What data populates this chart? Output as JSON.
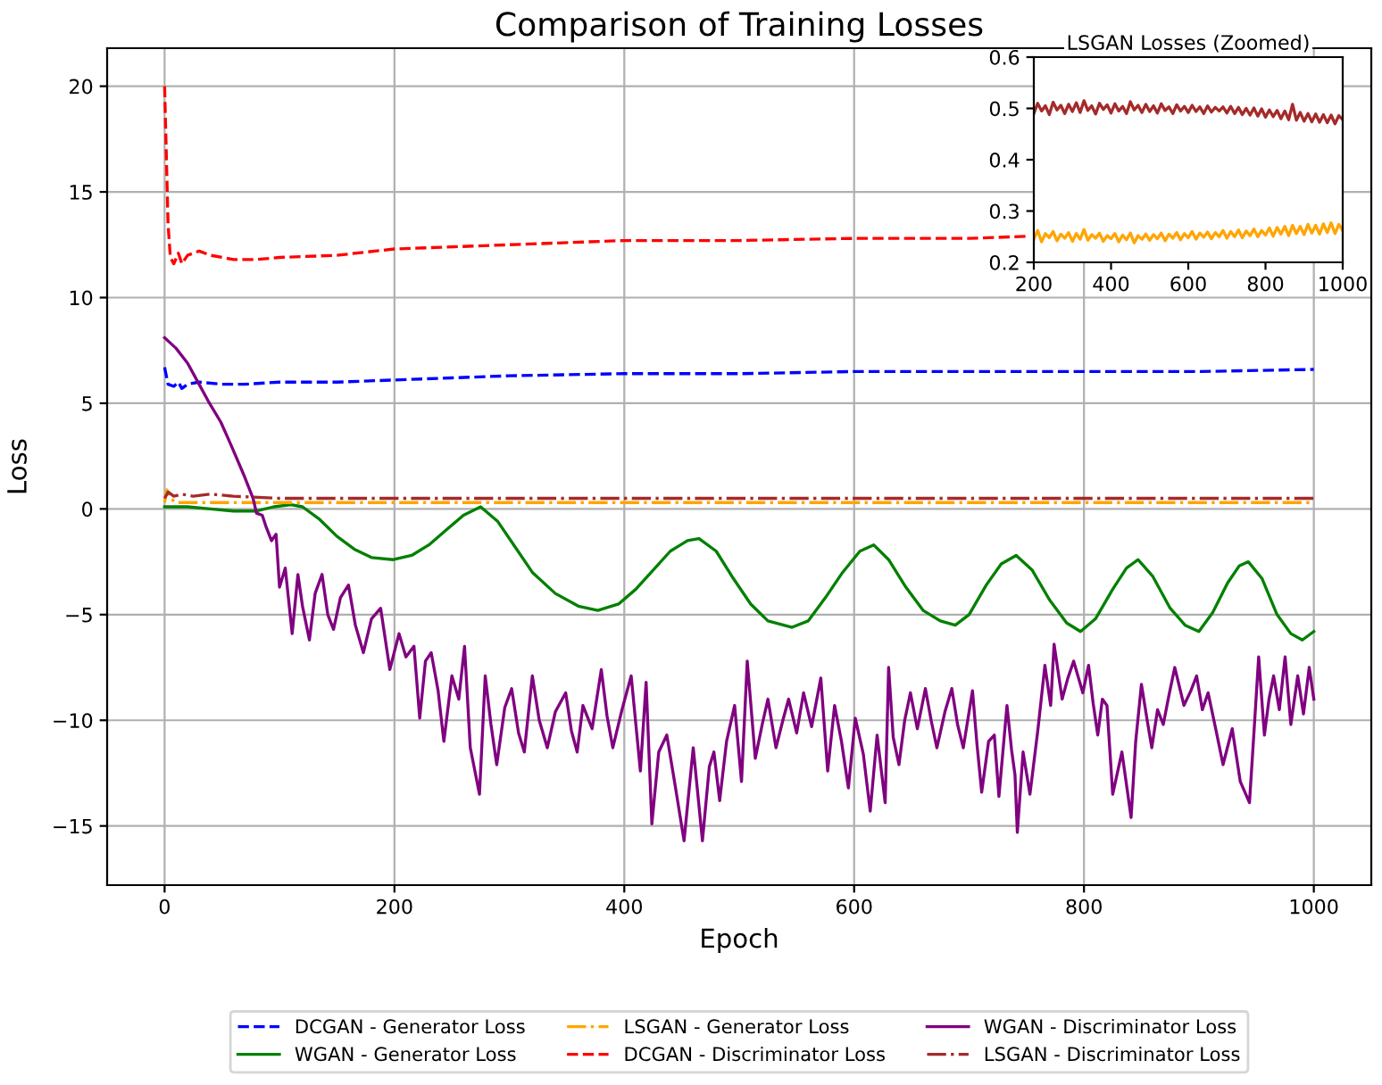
{
  "chart_data": [
    {
      "type": "line",
      "title": "Comparison of Training Losses",
      "xlabel": "Epoch",
      "ylabel": "Loss",
      "xlim": [
        -50,
        1050
      ],
      "ylim": [
        -17.8,
        21.8
      ],
      "xticks": [
        0,
        200,
        400,
        600,
        800,
        1000
      ],
      "yticks": [
        -15,
        -10,
        -5,
        0,
        5,
        10,
        15,
        20
      ],
      "grid": true,
      "legend": "bottom",
      "series": [
        {
          "name": "DCGAN - Generator Loss",
          "color": "#0000ff",
          "line_style": "dashed",
          "x": [
            0,
            3,
            8,
            12,
            15,
            20,
            30,
            50,
            70,
            100,
            150,
            200,
            250,
            300,
            400,
            500,
            600,
            700,
            800,
            900,
            1000
          ],
          "values": [
            6.7,
            5.9,
            5.8,
            6.0,
            5.7,
            5.9,
            6.0,
            5.9,
            5.9,
            6.0,
            6.0,
            6.1,
            6.2,
            6.3,
            6.4,
            6.4,
            6.5,
            6.5,
            6.5,
            6.5,
            6.6
          ]
        },
        {
          "name": "WGAN - Generator Loss",
          "color": "#008000",
          "line_style": "solid",
          "x": [
            0,
            20,
            40,
            60,
            80,
            95,
            110,
            120,
            135,
            150,
            165,
            180,
            199,
            215,
            230,
            245,
            260,
            275,
            290,
            305,
            320,
            340,
            360,
            377,
            395,
            410,
            425,
            440,
            455,
            465,
            480,
            495,
            510,
            525,
            546,
            560,
            575,
            590,
            605,
            617,
            630,
            645,
            660,
            675,
            688,
            700,
            715,
            728,
            741,
            755,
            770,
            785,
            797,
            810,
            825,
            837,
            847,
            860,
            875,
            888,
            900,
            912,
            925,
            935,
            943,
            955,
            968,
            980,
            990,
            1000
          ],
          "values": [
            0.1,
            0.1,
            0.0,
            -0.1,
            -0.1,
            0.1,
            0.2,
            0.1,
            -0.5,
            -1.3,
            -1.9,
            -2.3,
            -2.4,
            -2.2,
            -1.7,
            -1.0,
            -0.3,
            0.1,
            -0.6,
            -1.8,
            -3.0,
            -4.0,
            -4.6,
            -4.8,
            -4.5,
            -3.8,
            -2.9,
            -2.0,
            -1.5,
            -1.4,
            -2.0,
            -3.3,
            -4.5,
            -5.3,
            -5.6,
            -5.3,
            -4.2,
            -3.0,
            -2.0,
            -1.7,
            -2.4,
            -3.7,
            -4.8,
            -5.3,
            -5.5,
            -5.0,
            -3.6,
            -2.6,
            -2.2,
            -2.9,
            -4.3,
            -5.4,
            -5.8,
            -5.2,
            -3.8,
            -2.8,
            -2.4,
            -3.2,
            -4.7,
            -5.5,
            -5.8,
            -4.9,
            -3.5,
            -2.7,
            -2.5,
            -3.3,
            -5.0,
            -5.9,
            -6.2,
            -5.8
          ]
        },
        {
          "name": "LSGAN - Generator Loss",
          "color": "#ffa500",
          "line_style": "dashdot",
          "x": [
            0,
            2,
            5,
            10,
            1000
          ],
          "values": [
            0.3,
            0.9,
            0.5,
            0.3,
            0.3
          ]
        },
        {
          "name": "DCGAN - Discriminator Loss",
          "color": "#ff0000",
          "line_style": "dashed",
          "x": [
            0,
            3,
            5,
            8,
            12,
            15,
            20,
            30,
            40,
            60,
            80,
            100,
            150,
            200,
            300,
            400,
            500,
            600,
            700,
            750
          ],
          "values": [
            20.0,
            13.5,
            11.9,
            11.6,
            12.1,
            11.6,
            12.0,
            12.2,
            12.0,
            11.8,
            11.8,
            11.9,
            12.0,
            12.3,
            12.5,
            12.7,
            12.7,
            12.8,
            12.8,
            12.9
          ]
        },
        {
          "name": "WGAN - Discriminator Loss",
          "color": "#800080",
          "line_style": "solid",
          "x": [
            0,
            10,
            20,
            28,
            38,
            49,
            58,
            69,
            77,
            80,
            85,
            88,
            93,
            97,
            100,
            105,
            111,
            116,
            120,
            126,
            131,
            137,
            142,
            147,
            153,
            160,
            166,
            173,
            180,
            188,
            196,
            204,
            210,
            217,
            222,
            227,
            232,
            238,
            243,
            250,
            256,
            261,
            266,
            274,
            279,
            284,
            289,
            296,
            302,
            308,
            313,
            320,
            326,
            333,
            340,
            349,
            354,
            359,
            364,
            372,
            380,
            385,
            390,
            398,
            406,
            414,
            419,
            424,
            430,
            437,
            444,
            452,
            460,
            468,
            474,
            478,
            483,
            489,
            496,
            502,
            507,
            514,
            520,
            525,
            532,
            538,
            543,
            550,
            556,
            563,
            571,
            577,
            583,
            589,
            595,
            601,
            608,
            614,
            620,
            627,
            630,
            634,
            639,
            644,
            649,
            655,
            662,
            667,
            672,
            679,
            685,
            690,
            695,
            703,
            707,
            711,
            717,
            722,
            726,
            733,
            737,
            740,
            742,
            747,
            753,
            760,
            766,
            771,
            774,
            781,
            786,
            791,
            799,
            804,
            808,
            812,
            816,
            820,
            825,
            833,
            841,
            845,
            850,
            855,
            859,
            864,
            869,
            874,
            879,
            887,
            893,
            898,
            903,
            908,
            915,
            921,
            929,
            936,
            944,
            948,
            952,
            957,
            961,
            965,
            970,
            975,
            980,
            986,
            991,
            996,
            1000
          ],
          "values": [
            8.1,
            7.6,
            6.9,
            6.1,
            5.1,
            4.1,
            3.0,
            1.6,
            0.5,
            -0.2,
            -0.3,
            -0.8,
            -1.5,
            -1.2,
            -3.7,
            -2.8,
            -5.9,
            -3.1,
            -4.6,
            -6.2,
            -4.0,
            -3.1,
            -5.0,
            -5.7,
            -4.2,
            -3.6,
            -5.5,
            -6.8,
            -5.2,
            -4.7,
            -7.6,
            -5.9,
            -7.0,
            -6.5,
            -9.9,
            -7.2,
            -6.8,
            -8.6,
            -11.0,
            -7.9,
            -9.0,
            -6.5,
            -11.3,
            -13.5,
            -7.9,
            -10.2,
            -12.1,
            -9.4,
            -8.5,
            -10.6,
            -11.5,
            -7.9,
            -10.0,
            -11.3,
            -9.6,
            -8.7,
            -10.5,
            -11.5,
            -9.3,
            -10.4,
            -7.6,
            -9.8,
            -11.3,
            -9.5,
            -7.9,
            -12.4,
            -8.2,
            -14.9,
            -11.5,
            -10.7,
            -13.0,
            -15.7,
            -11.3,
            -15.7,
            -12.2,
            -11.5,
            -13.8,
            -11.0,
            -9.3,
            -12.9,
            -7.2,
            -11.8,
            -10.2,
            -9.0,
            -11.3,
            -10.0,
            -9.0,
            -10.6,
            -8.7,
            -10.3,
            -8.0,
            -12.4,
            -9.3,
            -11.0,
            -13.2,
            -9.9,
            -11.6,
            -14.3,
            -10.7,
            -13.9,
            -7.5,
            -10.8,
            -12.1,
            -10.0,
            -8.7,
            -10.4,
            -8.5,
            -10.0,
            -11.3,
            -9.6,
            -8.5,
            -10.2,
            -11.3,
            -8.6,
            -11.2,
            -13.4,
            -11.0,
            -10.7,
            -13.6,
            -9.3,
            -11.4,
            -12.6,
            -15.3,
            -11.5,
            -13.5,
            -10.4,
            -7.4,
            -9.3,
            -6.4,
            -9.0,
            -8.0,
            -7.2,
            -8.7,
            -7.4,
            -9.2,
            -10.7,
            -9.0,
            -9.3,
            -13.5,
            -11.5,
            -14.6,
            -11.0,
            -8.3,
            -10.0,
            -11.3,
            -9.5,
            -10.2,
            -8.8,
            -7.5,
            -9.3,
            -8.6,
            -7.9,
            -9.5,
            -8.7,
            -10.5,
            -12.1,
            -10.4,
            -12.9,
            -13.9,
            -10.5,
            -7.0,
            -10.7,
            -9.0,
            -7.9,
            -9.5,
            -7.0,
            -10.2,
            -7.9,
            -9.7,
            -7.5,
            -9.0
          ]
        },
        {
          "name": "LSGAN - Discriminator Loss",
          "color": "#a52a2a",
          "line_style": "dashdot",
          "x": [
            0,
            3,
            8,
            15,
            25,
            40,
            60,
            100,
            1000
          ],
          "values": [
            0.5,
            0.8,
            0.6,
            0.7,
            0.6,
            0.7,
            0.6,
            0.5,
            0.5
          ]
        }
      ]
    },
    {
      "type": "line",
      "title": "LSGAN Losses (Zoomed)",
      "xlim": [
        200,
        1000
      ],
      "ylim": [
        0.2,
        0.6
      ],
      "xticks": [
        200,
        400,
        600,
        800,
        1000
      ],
      "yticks": [
        0.2,
        0.3,
        0.4,
        0.5,
        0.6
      ],
      "x": [
        200,
        210,
        220,
        230,
        240,
        250,
        260,
        270,
        280,
        290,
        300,
        310,
        320,
        330,
        340,
        350,
        360,
        370,
        380,
        390,
        400,
        410,
        420,
        430,
        440,
        450,
        460,
        470,
        480,
        490,
        500,
        510,
        520,
        530,
        540,
        550,
        560,
        570,
        580,
        590,
        600,
        610,
        620,
        630,
        640,
        650,
        660,
        670,
        680,
        690,
        700,
        710,
        720,
        730,
        740,
        750,
        760,
        770,
        780,
        790,
        800,
        810,
        820,
        830,
        840,
        850,
        860,
        870,
        880,
        890,
        900,
        910,
        920,
        930,
        940,
        950,
        960,
        970,
        980,
        990,
        1000
      ],
      "series": [
        {
          "color": "#ffa500",
          "line_style": "solid",
          "values": [
            0.245,
            0.262,
            0.24,
            0.256,
            0.248,
            0.26,
            0.242,
            0.255,
            0.247,
            0.258,
            0.241,
            0.256,
            0.245,
            0.264,
            0.243,
            0.254,
            0.247,
            0.257,
            0.241,
            0.252,
            0.246,
            0.256,
            0.24,
            0.253,
            0.244,
            0.257,
            0.238,
            0.252,
            0.245,
            0.255,
            0.243,
            0.254,
            0.246,
            0.257,
            0.242,
            0.255,
            0.247,
            0.258,
            0.244,
            0.256,
            0.248,
            0.26,
            0.245,
            0.257,
            0.249,
            0.259,
            0.246,
            0.258,
            0.25,
            0.262,
            0.247,
            0.26,
            0.25,
            0.263,
            0.248,
            0.261,
            0.252,
            0.265,
            0.25,
            0.262,
            0.253,
            0.267,
            0.251,
            0.268,
            0.255,
            0.27,
            0.252,
            0.272,
            0.256,
            0.27,
            0.254,
            0.274,
            0.257,
            0.272,
            0.255,
            0.275,
            0.258,
            0.277,
            0.256,
            0.274,
            0.262
          ]
        },
        {
          "color": "#a52a2a",
          "line_style": "solid",
          "values": [
            0.49,
            0.51,
            0.495,
            0.505,
            0.488,
            0.512,
            0.497,
            0.506,
            0.49,
            0.508,
            0.494,
            0.511,
            0.492,
            0.515,
            0.496,
            0.505,
            0.489,
            0.51,
            0.498,
            0.507,
            0.491,
            0.509,
            0.495,
            0.504,
            0.49,
            0.513,
            0.497,
            0.506,
            0.492,
            0.508,
            0.494,
            0.505,
            0.491,
            0.509,
            0.496,
            0.503,
            0.49,
            0.507,
            0.495,
            0.504,
            0.492,
            0.506,
            0.494,
            0.503,
            0.49,
            0.505,
            0.493,
            0.502,
            0.495,
            0.503,
            0.491,
            0.504,
            0.49,
            0.502,
            0.488,
            0.5,
            0.487,
            0.501,
            0.485,
            0.499,
            0.483,
            0.497,
            0.484,
            0.496,
            0.48,
            0.495,
            0.478,
            0.508,
            0.477,
            0.492,
            0.475,
            0.49,
            0.474,
            0.489,
            0.473,
            0.488,
            0.472,
            0.487,
            0.47,
            0.486,
            0.478
          ]
        }
      ]
    }
  ]
}
